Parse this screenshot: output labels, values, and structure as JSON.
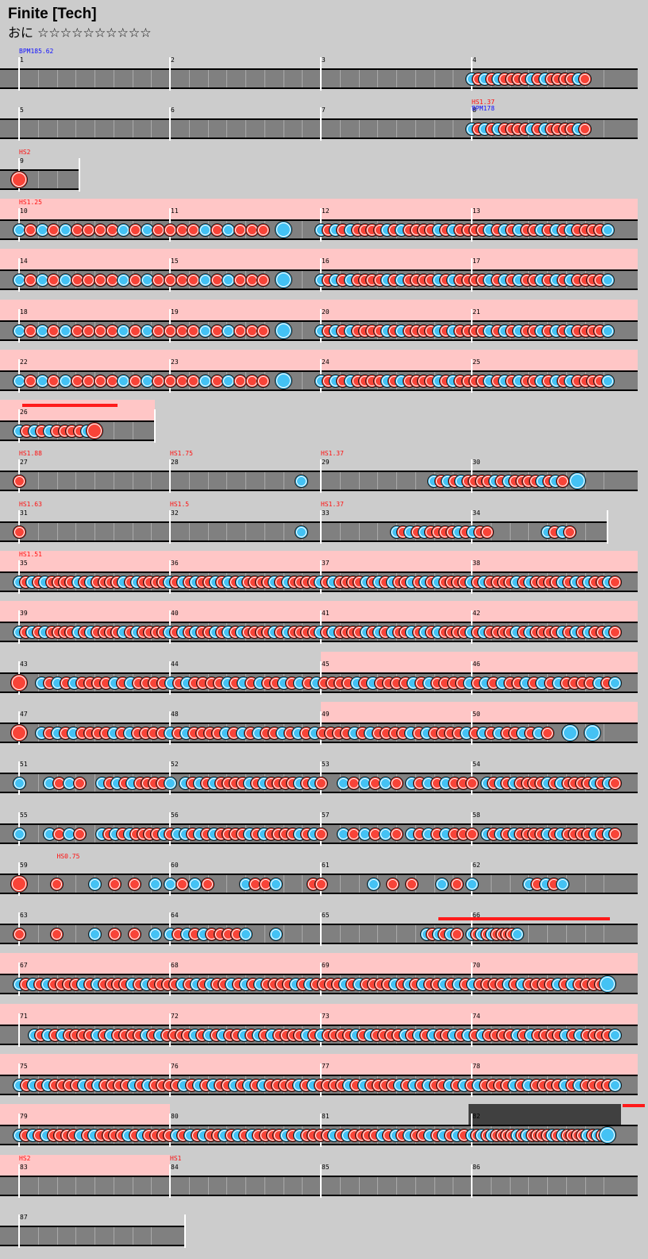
{
  "song": {
    "title": "Finite [Tech]",
    "difficulty_label": "おに",
    "stars": "☆☆☆☆☆☆☆☆☆☆"
  },
  "colors": {
    "don": "#f84438",
    "ka": "#44c2f4",
    "lane": "#808080",
    "gogo": "#ffc6c6",
    "hs": "#ff1010",
    "bpm": "#1010ff"
  },
  "chart_data": {
    "type": "table",
    "rows": [
      {
        "bars": [
          "1",
          "2",
          "3",
          "4"
        ],
        "events": [
          "BPM185.62"
        ]
      },
      {
        "bars": [
          "5",
          "6",
          "7",
          "8"
        ],
        "events": [
          "HS1.37",
          "BPM178"
        ]
      },
      {
        "bars": [
          "9"
        ],
        "events": [
          "HS2"
        ]
      },
      {
        "bars": [
          "10",
          "11",
          "12",
          "13"
        ],
        "events": [
          "HS1.25"
        ]
      },
      {
        "bars": [
          "14",
          "15",
          "16",
          "17"
        ],
        "events": []
      },
      {
        "bars": [
          "18",
          "19",
          "20",
          "21"
        ],
        "events": []
      },
      {
        "bars": [
          "22",
          "23",
          "24",
          "25"
        ],
        "events": []
      },
      {
        "bars": [
          "26"
        ],
        "events": []
      },
      {
        "bars": [
          "27",
          "28",
          "29",
          "30"
        ],
        "events": [
          "HS1.88",
          "HS1.75",
          "HS1.37"
        ]
      },
      {
        "bars": [
          "31",
          "32",
          "33",
          "34"
        ],
        "events": [
          "HS1.63",
          "HS1.5",
          "HS1.37"
        ]
      },
      {
        "bars": [
          "35",
          "36",
          "37",
          "38"
        ],
        "events": [
          "HS1.51"
        ]
      },
      {
        "bars": [
          "39",
          "40",
          "41",
          "42"
        ],
        "events": []
      },
      {
        "bars": [
          "43",
          "44",
          "45",
          "46"
        ],
        "events": []
      },
      {
        "bars": [
          "47",
          "48",
          "49",
          "50"
        ],
        "events": []
      },
      {
        "bars": [
          "51",
          "52",
          "53",
          "54"
        ],
        "events": []
      },
      {
        "bars": [
          "55",
          "56",
          "57",
          "58"
        ],
        "events": []
      },
      {
        "bars": [
          "59",
          "60",
          "61",
          "62"
        ],
        "events": [
          "HS0.75"
        ]
      },
      {
        "bars": [
          "63",
          "64",
          "65",
          "66"
        ],
        "events": []
      },
      {
        "bars": [
          "67",
          "68",
          "69",
          "70"
        ],
        "events": []
      },
      {
        "bars": [
          "71",
          "72",
          "73",
          "74"
        ],
        "events": []
      },
      {
        "bars": [
          "75",
          "76",
          "77",
          "78"
        ],
        "events": []
      },
      {
        "bars": [
          "79",
          "80",
          "81",
          "82"
        ],
        "events": []
      },
      {
        "bars": [
          "83",
          "84",
          "85",
          "86"
        ],
        "events": [
          "HS2",
          "HS1"
        ]
      },
      {
        "bars": [
          "87"
        ],
        "events": []
      }
    ]
  }
}
